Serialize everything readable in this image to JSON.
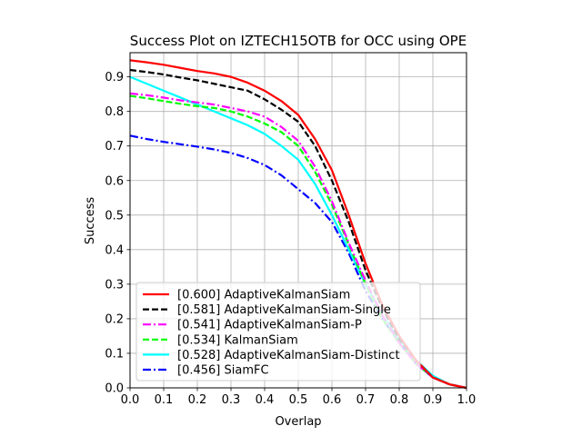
{
  "chart_data": {
    "type": "line",
    "title": "Success Plot on IZTECH15OTB for OCC using OPE",
    "xlabel": "Overlap",
    "ylabel": "Success",
    "xlim": [
      0,
      1
    ],
    "ylim": [
      0,
      0.97
    ],
    "xticks": [
      0.0,
      0.1,
      0.2,
      0.3,
      0.4,
      0.5,
      0.6,
      0.7,
      0.8,
      0.9,
      1.0
    ],
    "xtick_labels": [
      "0.0",
      "0.1",
      "0.2",
      "0.3",
      "0.4",
      "0.5",
      "0.6",
      "0.7",
      "0.8",
      "0.9",
      "1.0"
    ],
    "yticks": [
      0.0,
      0.1,
      0.2,
      0.3,
      0.4,
      0.5,
      0.6,
      0.7,
      0.8,
      0.9
    ],
    "ytick_labels": [
      "0.0",
      "0.1",
      "0.2",
      "0.3",
      "0.4",
      "0.5",
      "0.6",
      "0.7",
      "0.8",
      "0.9"
    ],
    "grid": true,
    "legend_position": "lower-left",
    "x": [
      0,
      0.05,
      0.1,
      0.15,
      0.2,
      0.25,
      0.3,
      0.35,
      0.4,
      0.45,
      0.5,
      0.55,
      0.6,
      0.65,
      0.7,
      0.75,
      0.8,
      0.85,
      0.9,
      0.95,
      1.0
    ],
    "series": [
      {
        "name": "[0.600] AdaptiveKalmanSiam",
        "color": "#ff0000",
        "dash": "solid",
        "values": [
          0.948,
          0.942,
          0.935,
          0.926,
          0.917,
          0.91,
          0.9,
          0.883,
          0.86,
          0.83,
          0.79,
          0.72,
          0.63,
          0.5,
          0.36,
          0.24,
          0.15,
          0.08,
          0.03,
          0.01,
          0.0
        ]
      },
      {
        "name": "[0.581] AdaptiveKalmanSiam-Single",
        "color": "#000000",
        "dash": "dashed",
        "values": [
          0.92,
          0.914,
          0.907,
          0.898,
          0.89,
          0.88,
          0.87,
          0.86,
          0.835,
          0.805,
          0.77,
          0.7,
          0.6,
          0.48,
          0.34,
          0.23,
          0.14,
          0.08,
          0.03,
          0.01,
          0.0
        ]
      },
      {
        "name": "[0.541] AdaptiveKalmanSiam-P",
        "color": "#ff00ff",
        "dash": "dashdot",
        "values": [
          0.852,
          0.847,
          0.84,
          0.832,
          0.826,
          0.82,
          0.81,
          0.8,
          0.785,
          0.755,
          0.715,
          0.64,
          0.54,
          0.42,
          0.31,
          0.21,
          0.13,
          0.07,
          0.03,
          0.01,
          0.0
        ]
      },
      {
        "name": "[0.534] KalmanSiam",
        "color": "#00ff00",
        "dash": "dashed",
        "values": [
          0.845,
          0.838,
          0.83,
          0.822,
          0.815,
          0.81,
          0.8,
          0.785,
          0.765,
          0.74,
          0.7,
          0.625,
          0.53,
          0.415,
          0.3,
          0.2,
          0.13,
          0.07,
          0.03,
          0.01,
          0.0
        ]
      },
      {
        "name": "[0.528] AdaptiveKalmanSiam-Distinct",
        "color": "#00ffff",
        "dash": "solid",
        "values": [
          0.9,
          0.88,
          0.86,
          0.84,
          0.82,
          0.8,
          0.78,
          0.76,
          0.735,
          0.7,
          0.66,
          0.59,
          0.5,
          0.4,
          0.3,
          0.21,
          0.14,
          0.08,
          0.035,
          0.01,
          0.0
        ]
      },
      {
        "name": "[0.456] SiamFC",
        "color": "#0000ff",
        "dash": "dashdot",
        "values": [
          0.73,
          0.72,
          0.712,
          0.705,
          0.698,
          0.69,
          0.68,
          0.665,
          0.645,
          0.615,
          0.575,
          0.535,
          0.48,
          0.39,
          0.28,
          0.2,
          0.13,
          0.07,
          0.03,
          0.01,
          0.0
        ]
      }
    ]
  }
}
